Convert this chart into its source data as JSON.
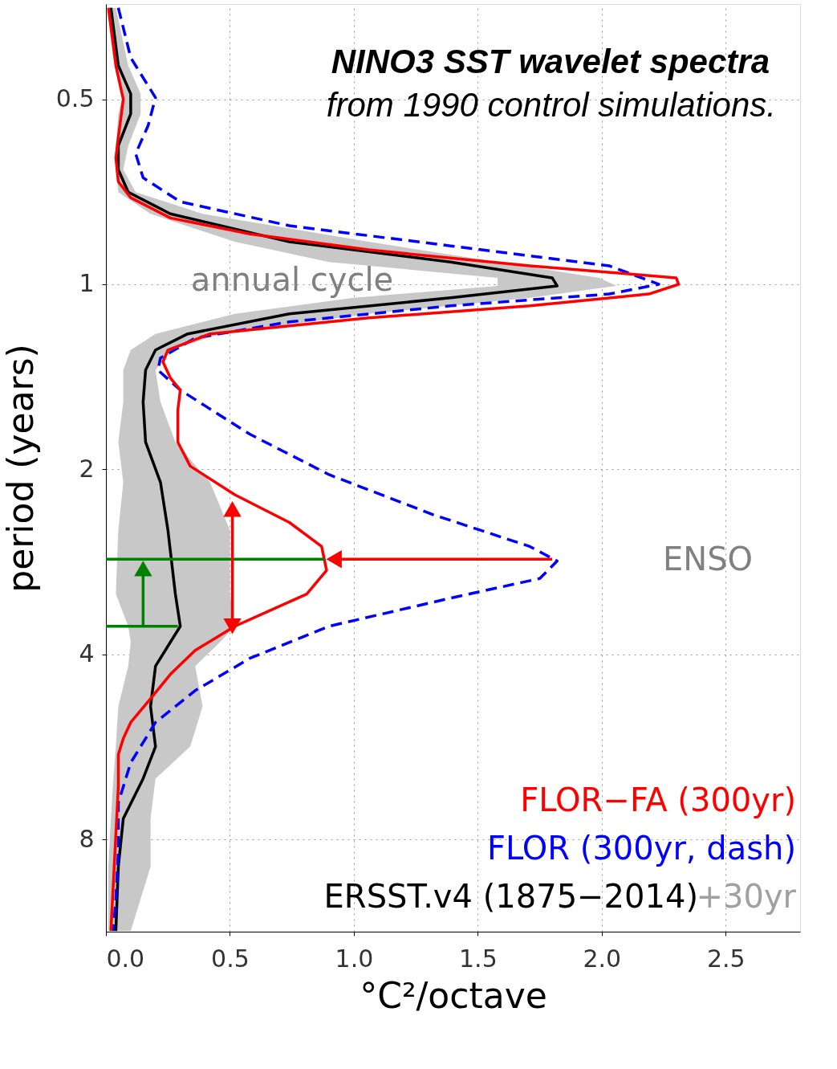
{
  "chart_data": {
    "type": "line",
    "title": "NINO3 SST wavelet spectra",
    "subtitle": "from 1990 control simulations.",
    "xlabel": "°C²/octave",
    "ylabel": "period (years)",
    "xlim": [
      0,
      2.8
    ],
    "xticks": [
      {
        "value": 0,
        "label": "0.0"
      },
      0.5,
      {
        "value": 1,
        "label": "1.0"
      },
      1.5,
      {
        "value": 2,
        "label": "2.0"
      },
      2.5
    ],
    "ylim": [
      11.3,
      0.35
    ],
    "yticks": [
      0.5,
      1,
      2,
      4,
      8
    ],
    "log": "y",
    "grid": true,
    "legend": "bottom right",
    "annotations": [
      "annual cycle",
      "ENSO",
      "+30yr"
    ],
    "series": [
      {
        "color": "#c8c8c8",
        "type": "area",
        "x": [
          0.01,
          0.04,
          0.07,
          0.05,
          0.04,
          0.04,
          0.05,
          0.18,
          0.52,
          0.9,
          1.58,
          1.58,
          1.0,
          0.52,
          0.2,
          0.1,
          0.07,
          0.07,
          0.05,
          0.07,
          0.05,
          0.04,
          0.09,
          0.1,
          0.09,
          0.05,
          0.04,
          0.03,
          0.02,
          0.01,
          0.01,
          0.1,
          0.18,
          0.18,
          0.2,
          0.34,
          0.39,
          0.36,
          0.46,
          0.52,
          0.5,
          0.5,
          0.42,
          0.28,
          0.22,
          0.2,
          0.26,
          0.46,
          1.06,
          1.71,
          2.06,
          1.99,
          1.58,
          1.06,
          0.39,
          0.12,
          0.07,
          0.09,
          0.14,
          0.14,
          0.09,
          0.04
        ],
        "values": [
          0.355,
          0.441,
          0.49,
          0.528,
          0.595,
          0.651,
          0.708,
          0.768,
          0.853,
          0.92,
          0.976,
          1.006,
          1.052,
          1.117,
          1.204,
          1.279,
          1.379,
          1.554,
          1.806,
          2.1,
          2.51,
          3.19,
          3.6,
          3.82,
          4.18,
          4.86,
          5.65,
          6.37,
          7.4,
          8.86,
          11.27,
          11.27,
          8.86,
          7.4,
          6.37,
          5.65,
          4.86,
          4.18,
          3.82,
          3.6,
          3.19,
          2.51,
          2.1,
          1.806,
          1.554,
          1.379,
          1.279,
          1.204,
          1.117,
          1.052,
          1.006,
          0.976,
          0.92,
          0.853,
          0.768,
          0.708,
          0.651,
          0.595,
          0.528,
          0.49,
          0.441,
          0.355
        ]
      },
      {
        "name": "ERSST.v4 (1875−2014)",
        "color": "#000000",
        "line_style": "solid",
        "x": [
          0.02,
          0.05,
          0.1,
          0.1,
          0.05,
          0.05,
          0.09,
          0.26,
          0.74,
          1.39,
          1.8,
          1.82,
          1.39,
          0.74,
          0.33,
          0.2,
          0.16,
          0.15,
          0.16,
          0.22,
          0.25,
          0.28,
          0.3,
          0.26,
          0.2,
          0.18,
          0.2,
          0.15,
          0.07,
          0.05,
          0.04
        ],
        "values": [
          0.355,
          0.441,
          0.49,
          0.528,
          0.595,
          0.651,
          0.708,
          0.768,
          0.853,
          0.92,
          0.976,
          1.006,
          1.052,
          1.117,
          1.204,
          1.279,
          1.379,
          1.554,
          1.806,
          2.1,
          2.51,
          3.19,
          3.6,
          3.82,
          4.18,
          4.86,
          5.65,
          6.37,
          7.4,
          8.86,
          11.27
        ]
      },
      {
        "name": "FLOR (300yr, dash)",
        "color": "#0000ff",
        "line_style": "dashed",
        "x": [
          0.05,
          0.1,
          0.2,
          0.17,
          0.12,
          0.15,
          0.3,
          0.74,
          1.39,
          2.03,
          2.23,
          2.03,
          1.39,
          0.74,
          0.36,
          0.22,
          0.21,
          0.3,
          0.58,
          0.9,
          1.32,
          1.71,
          1.82,
          1.75,
          1.39,
          0.9,
          0.58,
          0.36,
          0.2,
          0.1,
          0.05,
          0.05,
          0.04,
          0.03
        ],
        "values": [
          0.355,
          0.428,
          0.497,
          0.552,
          0.613,
          0.671,
          0.734,
          0.803,
          0.866,
          0.933,
          1.0,
          1.037,
          1.084,
          1.151,
          1.223,
          1.318,
          1.379,
          1.486,
          1.753,
          2.04,
          2.37,
          2.67,
          2.82,
          3.01,
          3.24,
          3.6,
          4.06,
          4.58,
          5.16,
          6.0,
          6.97,
          8.34,
          9.99,
          11.27
        ]
      },
      {
        "name": "FLOR−FA (300yr)",
        "color": "#ff0000",
        "line_style": "solid",
        "x": [
          0.01,
          0.04,
          0.07,
          0.05,
          0.04,
          0.05,
          0.1,
          0.26,
          0.58,
          1.06,
          1.71,
          2.3,
          2.31,
          2.19,
          1.71,
          1.06,
          0.42,
          0.25,
          0.23,
          0.26,
          0.3,
          0.29,
          0.29,
          0.34,
          0.52,
          0.74,
          0.87,
          0.89,
          0.81,
          0.52,
          0.36,
          0.26,
          0.18,
          0.1,
          0.07,
          0.05,
          0.05,
          0.04,
          0.03,
          0.02
        ],
        "values": [
          0.355,
          0.441,
          0.5,
          0.577,
          0.623,
          0.681,
          0.723,
          0.78,
          0.828,
          0.879,
          0.933,
          0.976,
          1.0,
          1.037,
          1.084,
          1.134,
          1.204,
          1.279,
          1.338,
          1.42,
          1.486,
          1.602,
          1.806,
          1.976,
          2.2,
          2.44,
          2.67,
          2.92,
          3.19,
          3.6,
          3.94,
          4.31,
          4.72,
          5.16,
          5.48,
          5.82,
          6.56,
          7.86,
          9.41,
          11.27
        ]
      },
      {
        "color": "#008000",
        "line_style": "solid",
        "x": [
          0,
          0.88
        ],
        "values": [
          2.8,
          2.8
        ]
      },
      {
        "color": "#008000",
        "line_style": "solid",
        "x": [
          0,
          0.29
        ],
        "values": [
          3.6,
          3.6
        ]
      },
      {
        "color": "#008000",
        "line_style": "solid",
        "marker": "triangle",
        "x": [
          0.15,
          0.15
        ],
        "values": [
          3.6,
          2.9
        ]
      },
      {
        "color": "#ff0000",
        "line_style": "solid",
        "marker": "triangle",
        "x": [
          0.51,
          0.51
        ],
        "values": [
          2.32,
          3.6
        ]
      },
      {
        "color": "#ff0000",
        "type": "scatter",
        "marker": "triangle",
        "x": [
          0.51
        ],
        "values": [
          2.32
        ]
      },
      {
        "color": "#ff0000",
        "line_style": "solid",
        "marker": "triangle",
        "x": [
          1.8,
          0.92
        ],
        "values": [
          2.8,
          2.8
        ]
      }
    ]
  }
}
